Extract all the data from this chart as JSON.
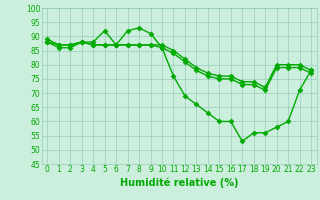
{
  "hours": [
    0,
    1,
    2,
    3,
    4,
    5,
    6,
    7,
    8,
    9,
    10,
    11,
    12,
    13,
    14,
    15,
    16,
    17,
    18,
    19,
    20,
    21,
    22,
    23
  ],
  "line1": [
    89,
    87,
    87,
    88,
    88,
    92,
    87,
    92,
    93,
    91,
    86,
    76,
    69,
    66,
    63,
    60,
    60,
    53,
    56,
    56,
    58,
    60,
    71,
    78
  ],
  "line2": [
    88,
    87,
    87,
    88,
    87,
    87,
    87,
    87,
    87,
    87,
    87,
    85,
    82,
    79,
    77,
    76,
    76,
    74,
    74,
    72,
    80,
    80,
    80,
    78
  ],
  "line3": [
    88,
    86,
    86,
    88,
    87,
    87,
    87,
    87,
    87,
    87,
    86,
    84,
    81,
    78,
    76,
    75,
    75,
    73,
    73,
    71,
    79,
    79,
    79,
    77
  ],
  "line_color": "#00aa00",
  "bg_color": "#cceedd",
  "grid_color": "#99ccbb",
  "xlabel": "Humidité relative (%)",
  "ylim": [
    45,
    100
  ],
  "xlim_min": -0.5,
  "xlim_max": 23.5,
  "yticks": [
    45,
    50,
    55,
    60,
    65,
    70,
    75,
    80,
    85,
    90,
    95,
    100
  ],
  "xticks": [
    0,
    1,
    2,
    3,
    4,
    5,
    6,
    7,
    8,
    9,
    10,
    11,
    12,
    13,
    14,
    15,
    16,
    17,
    18,
    19,
    20,
    21,
    22,
    23
  ],
  "marker_size": 2.5,
  "line_width": 1.0,
  "font_color": "#00aa00",
  "tick_fontsize": 5.5,
  "xlabel_fontsize": 7
}
